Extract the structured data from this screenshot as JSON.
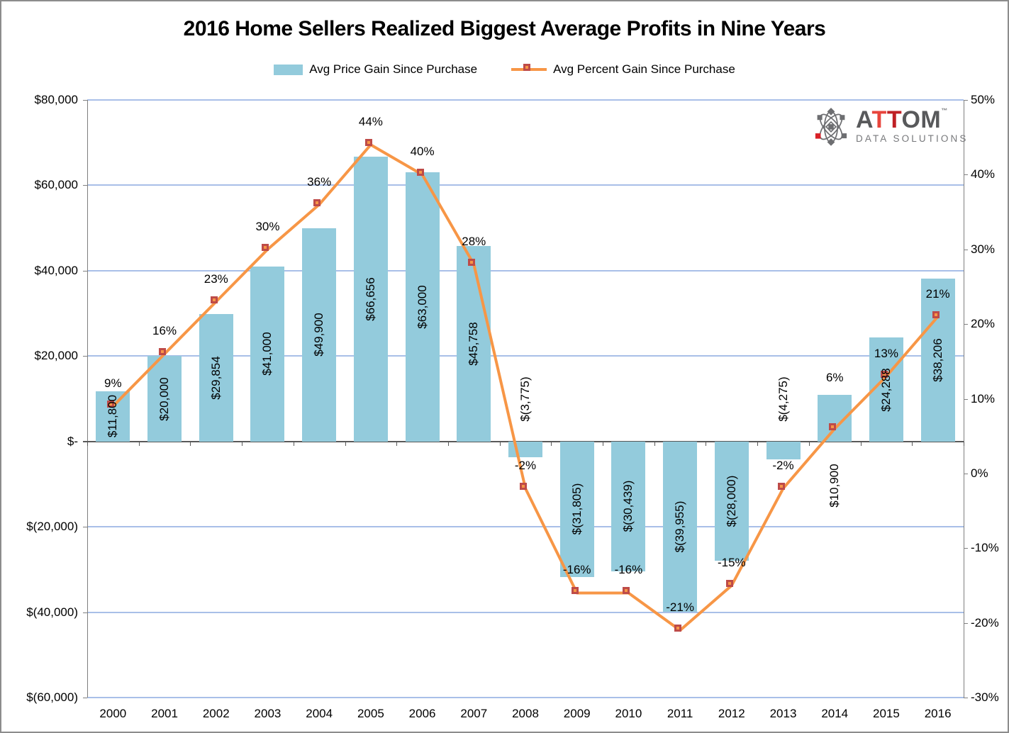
{
  "title": "2016 Home Sellers Realized Biggest Average Profits in Nine Years",
  "legend": {
    "bar_label": "Avg Price Gain Since Purchase",
    "line_label": "Avg Percent Gain Since Purchase"
  },
  "logo": {
    "part_a": "A",
    "part_t1": "T",
    "part_t2": "T",
    "part_om": "OM",
    "trademark": "™",
    "subtitle": "DATA SOLUTIONS"
  },
  "colors": {
    "bar_fill": "#93CBDC",
    "line": "#F79646",
    "marker_fill": "#F79646",
    "marker_border": "#BE4B48",
    "gridline": "#A9BFE8",
    "axis_line": "#7F7F7F",
    "zero_line": "#595959",
    "logo_gray": "#58595B",
    "logo_red_light": "#E8453C",
    "logo_red_dark": "#BF2025"
  },
  "chart_data": {
    "type": "combo",
    "title": "2016 Home Sellers Realized Biggest Average Profits in Nine Years",
    "grid": true,
    "legend_position": "top",
    "categories": [
      "2000",
      "2001",
      "2002",
      "2003",
      "2004",
      "2005",
      "2006",
      "2007",
      "2008",
      "2009",
      "2010",
      "2011",
      "2012",
      "2013",
      "2014",
      "2015",
      "2016"
    ],
    "series": [
      {
        "name": "Avg Price Gain Since Purchase",
        "type": "bar",
        "axis": "left",
        "values": [
          11800,
          20000,
          29854,
          41000,
          49900,
          66656,
          63000,
          45758,
          -3775,
          -31805,
          -30439,
          -39955,
          -28000,
          -4275,
          10900,
          24288,
          38206
        ],
        "labels": [
          "$11,800",
          "$20,000",
          "$29,854",
          "$41,000",
          "$49,900",
          "$66,656",
          "$63,000",
          "$45,758",
          "$(3,775)",
          "$(31,805)",
          "$(30,439)",
          "$(39,955)",
          "$(28,000)",
          "$(4,275)",
          "$10,900",
          "$24,288",
          "$38,206"
        ]
      },
      {
        "name": "Avg Percent Gain Since Purchase",
        "type": "line",
        "axis": "right",
        "values": [
          9,
          16,
          23,
          30,
          36,
          44,
          40,
          28,
          -2,
          -16,
          -16,
          -21,
          -15,
          -2,
          6,
          13,
          21
        ],
        "labels": [
          "9%",
          "16%",
          "23%",
          "30%",
          "36%",
          "44%",
          "40%",
          "28%",
          "-2%",
          "-16%",
          "-16%",
          "-21%",
          "-15%",
          "-2%",
          "6%",
          "13%",
          "21%"
        ]
      }
    ],
    "axes": {
      "left": {
        "max": 80000,
        "min": -60000,
        "tick_step": 20000,
        "labels": [
          "$80,000",
          "$60,000",
          "$40,000",
          "$20,000",
          "$-",
          "$(20,000)",
          "$(40,000)",
          "$(60,000)"
        ]
      },
      "right": {
        "max": 50,
        "min": -30,
        "tick_step": 10,
        "labels": [
          "50%",
          "40%",
          "30%",
          "20%",
          "10%",
          "0%",
          "-10%",
          "-20%",
          "-30%"
        ]
      }
    }
  }
}
